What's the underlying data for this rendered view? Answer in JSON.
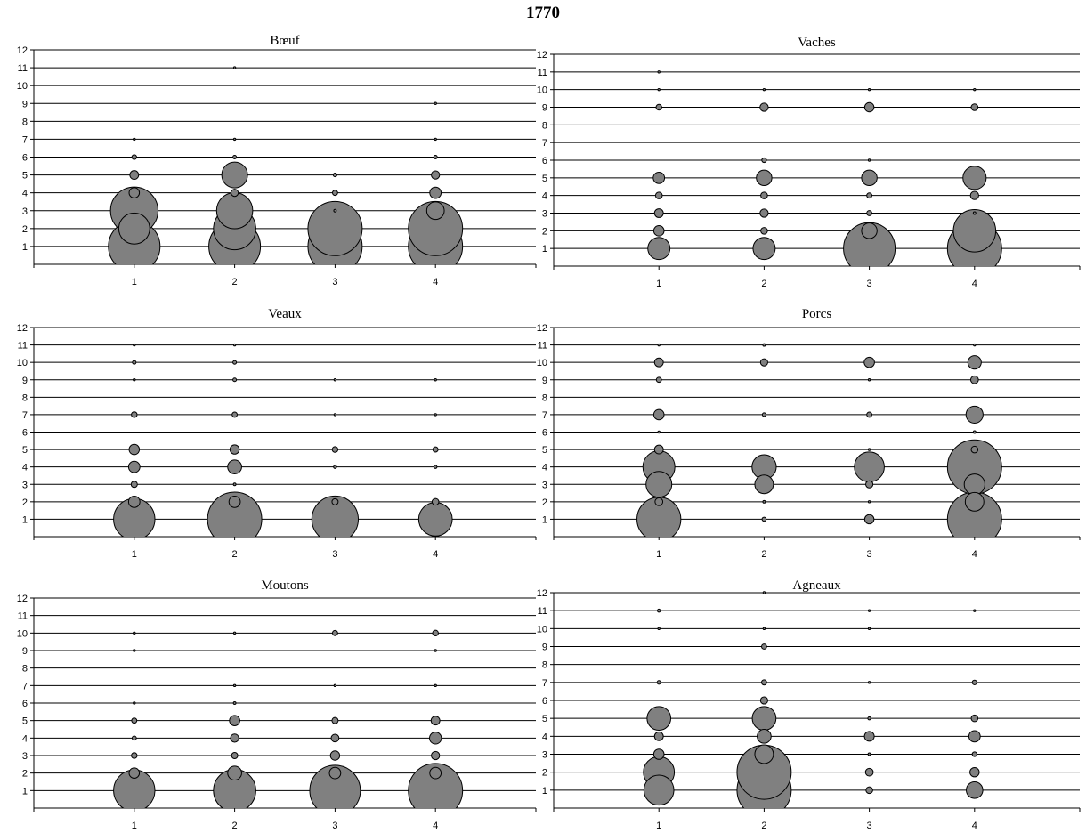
{
  "title": "1770",
  "colors": {
    "bubble_fill": "#808080",
    "bubble_stroke": "#000000",
    "grid": "#000000"
  },
  "chart_data": [
    {
      "type": "scatter",
      "title": "Bœuf",
      "x_ticks": [
        1,
        2,
        3,
        4
      ],
      "y_ticks": [
        1,
        2,
        3,
        4,
        5,
        6,
        7,
        8,
        9,
        10,
        11,
        12
      ],
      "xlim": [
        0,
        5
      ],
      "ylim": [
        0,
        12
      ],
      "grid": "horizontal",
      "points": [
        {
          "x": 1,
          "y": 1,
          "size": 1.0
        },
        {
          "x": 1,
          "y": 3,
          "size": 0.92
        },
        {
          "x": 1,
          "y": 2,
          "size": 0.6
        },
        {
          "x": 1,
          "y": 4,
          "size": 0.2
        },
        {
          "x": 1,
          "y": 5,
          "size": 0.17
        },
        {
          "x": 1,
          "y": 6,
          "size": 0.09
        },
        {
          "x": 1,
          "y": 7,
          "size": 0.04
        },
        {
          "x": 2,
          "y": 1,
          "size": 1.0
        },
        {
          "x": 2,
          "y": 2,
          "size": 0.82
        },
        {
          "x": 2,
          "y": 3,
          "size": 0.7
        },
        {
          "x": 2,
          "y": 5,
          "size": 0.5
        },
        {
          "x": 2,
          "y": 4,
          "size": 0.14
        },
        {
          "x": 2,
          "y": 6,
          "size": 0.07
        },
        {
          "x": 2,
          "y": 7,
          "size": 0.04
        },
        {
          "x": 2,
          "y": 11,
          "size": 0.04
        },
        {
          "x": 3,
          "y": 1,
          "size": 1.05
        },
        {
          "x": 3,
          "y": 2,
          "size": 1.05
        },
        {
          "x": 3,
          "y": 4,
          "size": 0.1
        },
        {
          "x": 3,
          "y": 5,
          "size": 0.07
        },
        {
          "x": 3,
          "y": 3,
          "size": 0.05
        },
        {
          "x": 4,
          "y": 1,
          "size": 1.05
        },
        {
          "x": 4,
          "y": 2,
          "size": 1.05
        },
        {
          "x": 4,
          "y": 3,
          "size": 0.34
        },
        {
          "x": 4,
          "y": 4,
          "size": 0.22
        },
        {
          "x": 4,
          "y": 5,
          "size": 0.16
        },
        {
          "x": 4,
          "y": 6,
          "size": 0.07
        },
        {
          "x": 4,
          "y": 7,
          "size": 0.04
        },
        {
          "x": 4,
          "y": 9,
          "size": 0.04
        }
      ]
    },
    {
      "type": "scatter",
      "title": "Vaches",
      "x_ticks": [
        1,
        2,
        3,
        4
      ],
      "y_ticks": [
        1,
        2,
        3,
        4,
        5,
        6,
        7,
        8,
        9,
        10,
        11,
        12
      ],
      "xlim": [
        0,
        5
      ],
      "ylim": [
        0,
        12
      ],
      "grid": "horizontal",
      "points": [
        {
          "x": 1,
          "y": 1,
          "size": 0.43
        },
        {
          "x": 1,
          "y": 2,
          "size": 0.2
        },
        {
          "x": 1,
          "y": 3,
          "size": 0.17
        },
        {
          "x": 1,
          "y": 4,
          "size": 0.13
        },
        {
          "x": 1,
          "y": 5,
          "size": 0.22
        },
        {
          "x": 1,
          "y": 9,
          "size": 0.11
        },
        {
          "x": 1,
          "y": 10,
          "size": 0.04
        },
        {
          "x": 1,
          "y": 11,
          "size": 0.04
        },
        {
          "x": 2,
          "y": 1,
          "size": 0.43
        },
        {
          "x": 2,
          "y": 2,
          "size": 0.13
        },
        {
          "x": 2,
          "y": 3,
          "size": 0.16
        },
        {
          "x": 2,
          "y": 4,
          "size": 0.13
        },
        {
          "x": 2,
          "y": 5,
          "size": 0.3
        },
        {
          "x": 2,
          "y": 6,
          "size": 0.09
        },
        {
          "x": 2,
          "y": 9,
          "size": 0.16
        },
        {
          "x": 2,
          "y": 10,
          "size": 0.04
        },
        {
          "x": 3,
          "y": 1,
          "size": 1.0
        },
        {
          "x": 3,
          "y": 2,
          "size": 0.3
        },
        {
          "x": 3,
          "y": 3,
          "size": 0.1
        },
        {
          "x": 3,
          "y": 4,
          "size": 0.1
        },
        {
          "x": 3,
          "y": 5,
          "size": 0.3
        },
        {
          "x": 3,
          "y": 6,
          "size": 0.04
        },
        {
          "x": 3,
          "y": 9,
          "size": 0.18
        },
        {
          "x": 3,
          "y": 10,
          "size": 0.04
        },
        {
          "x": 4,
          "y": 1,
          "size": 1.05
        },
        {
          "x": 4,
          "y": 2,
          "size": 0.82
        },
        {
          "x": 4,
          "y": 3,
          "size": 0.05
        },
        {
          "x": 4,
          "y": 4,
          "size": 0.16
        },
        {
          "x": 4,
          "y": 5,
          "size": 0.45
        },
        {
          "x": 4,
          "y": 9,
          "size": 0.13
        },
        {
          "x": 4,
          "y": 10,
          "size": 0.04
        }
      ]
    },
    {
      "type": "scatter",
      "title": "Veaux",
      "x_ticks": [
        1,
        2,
        3,
        4
      ],
      "y_ticks": [
        1,
        2,
        3,
        4,
        5,
        6,
        7,
        8,
        9,
        10,
        11,
        12
      ],
      "xlim": [
        0,
        5
      ],
      "ylim": [
        0,
        12
      ],
      "grid": "horizontal",
      "points": [
        {
          "x": 1,
          "y": 1,
          "size": 0.8
        },
        {
          "x": 1,
          "y": 2,
          "size": 0.22
        },
        {
          "x": 1,
          "y": 3,
          "size": 0.12
        },
        {
          "x": 1,
          "y": 4,
          "size": 0.22
        },
        {
          "x": 1,
          "y": 5,
          "size": 0.2
        },
        {
          "x": 1,
          "y": 7,
          "size": 0.11
        },
        {
          "x": 1,
          "y": 9,
          "size": 0.04
        },
        {
          "x": 1,
          "y": 10,
          "size": 0.07
        },
        {
          "x": 1,
          "y": 11,
          "size": 0.04
        },
        {
          "x": 2,
          "y": 1,
          "size": 1.05
        },
        {
          "x": 2,
          "y": 2,
          "size": 0.22
        },
        {
          "x": 2,
          "y": 3,
          "size": 0.05
        },
        {
          "x": 2,
          "y": 4,
          "size": 0.27
        },
        {
          "x": 2,
          "y": 5,
          "size": 0.18
        },
        {
          "x": 2,
          "y": 7,
          "size": 0.1
        },
        {
          "x": 2,
          "y": 9,
          "size": 0.07
        },
        {
          "x": 2,
          "y": 10,
          "size": 0.07
        },
        {
          "x": 2,
          "y": 11,
          "size": 0.03
        },
        {
          "x": 3,
          "y": 1,
          "size": 0.9
        },
        {
          "x": 3,
          "y": 2,
          "size": 0.12
        },
        {
          "x": 3,
          "y": 4,
          "size": 0.06
        },
        {
          "x": 3,
          "y": 5,
          "size": 0.11
        },
        {
          "x": 3,
          "y": 7,
          "size": 0.03
        },
        {
          "x": 3,
          "y": 9,
          "size": 0.04
        },
        {
          "x": 4,
          "y": 1,
          "size": 0.65
        },
        {
          "x": 4,
          "y": 2,
          "size": 0.13
        },
        {
          "x": 4,
          "y": 4,
          "size": 0.06
        },
        {
          "x": 4,
          "y": 5,
          "size": 0.1
        },
        {
          "x": 4,
          "y": 7,
          "size": 0.03
        },
        {
          "x": 4,
          "y": 9,
          "size": 0.03
        }
      ]
    },
    {
      "type": "scatter",
      "title": "Porcs",
      "x_ticks": [
        1,
        2,
        3,
        4
      ],
      "y_ticks": [
        1,
        2,
        3,
        4,
        5,
        6,
        7,
        8,
        9,
        10,
        11,
        12
      ],
      "xlim": [
        0,
        5
      ],
      "ylim": [
        0,
        12
      ],
      "grid": "horizontal",
      "points": [
        {
          "x": 1,
          "y": 1,
          "size": 0.85
        },
        {
          "x": 1,
          "y": 2,
          "size": 0.15
        },
        {
          "x": 1,
          "y": 3,
          "size": 0.5
        },
        {
          "x": 1,
          "y": 4,
          "size": 0.62
        },
        {
          "x": 1,
          "y": 5,
          "size": 0.17
        },
        {
          "x": 1,
          "y": 6,
          "size": 0.04
        },
        {
          "x": 1,
          "y": 7,
          "size": 0.2
        },
        {
          "x": 1,
          "y": 9,
          "size": 0.1
        },
        {
          "x": 1,
          "y": 10,
          "size": 0.17
        },
        {
          "x": 1,
          "y": 11,
          "size": 0.03
        },
        {
          "x": 2,
          "y": 1,
          "size": 0.08
        },
        {
          "x": 2,
          "y": 2,
          "size": 0.05
        },
        {
          "x": 2,
          "y": 3,
          "size": 0.36
        },
        {
          "x": 2,
          "y": 4,
          "size": 0.47
        },
        {
          "x": 2,
          "y": 7,
          "size": 0.07
        },
        {
          "x": 2,
          "y": 10,
          "size": 0.14
        },
        {
          "x": 2,
          "y": 11,
          "size": 0.05
        },
        {
          "x": 3,
          "y": 1,
          "size": 0.18
        },
        {
          "x": 3,
          "y": 2,
          "size": 0.04
        },
        {
          "x": 3,
          "y": 3,
          "size": 0.14
        },
        {
          "x": 3,
          "y": 4,
          "size": 0.58
        },
        {
          "x": 3,
          "y": 5,
          "size": 0.04
        },
        {
          "x": 3,
          "y": 7,
          "size": 0.1
        },
        {
          "x": 3,
          "y": 9,
          "size": 0.04
        },
        {
          "x": 3,
          "y": 10,
          "size": 0.2
        },
        {
          "x": 4,
          "y": 1,
          "size": 1.05
        },
        {
          "x": 4,
          "y": 2,
          "size": 0.36
        },
        {
          "x": 4,
          "y": 3,
          "size": 0.4
        },
        {
          "x": 4,
          "y": 4,
          "size": 1.05
        },
        {
          "x": 4,
          "y": 5,
          "size": 0.13
        },
        {
          "x": 4,
          "y": 6,
          "size": 0.05
        },
        {
          "x": 4,
          "y": 7,
          "size": 0.33
        },
        {
          "x": 4,
          "y": 9,
          "size": 0.15
        },
        {
          "x": 4,
          "y": 10,
          "size": 0.26
        },
        {
          "x": 4,
          "y": 11,
          "size": 0.04
        }
      ]
    },
    {
      "type": "scatter",
      "title": "Moutons",
      "x_ticks": [
        1,
        2,
        3,
        4
      ],
      "y_ticks": [
        1,
        2,
        3,
        4,
        5,
        6,
        7,
        8,
        9,
        10,
        11,
        12
      ],
      "xlim": [
        0,
        5
      ],
      "ylim": [
        0,
        12
      ],
      "grid": "horizontal",
      "points": [
        {
          "x": 1,
          "y": 1,
          "size": 0.8
        },
        {
          "x": 1,
          "y": 2,
          "size": 0.2
        },
        {
          "x": 1,
          "y": 3,
          "size": 0.11
        },
        {
          "x": 1,
          "y": 4,
          "size": 0.08
        },
        {
          "x": 1,
          "y": 5,
          "size": 0.1
        },
        {
          "x": 1,
          "y": 6,
          "size": 0.03
        },
        {
          "x": 1,
          "y": 9,
          "size": 0.03
        },
        {
          "x": 1,
          "y": 10,
          "size": 0.04
        },
        {
          "x": 2,
          "y": 1,
          "size": 0.82
        },
        {
          "x": 2,
          "y": 2,
          "size": 0.27
        },
        {
          "x": 2,
          "y": 3,
          "size": 0.12
        },
        {
          "x": 2,
          "y": 4,
          "size": 0.16
        },
        {
          "x": 2,
          "y": 5,
          "size": 0.2
        },
        {
          "x": 2,
          "y": 6,
          "size": 0.05
        },
        {
          "x": 2,
          "y": 7,
          "size": 0.03
        },
        {
          "x": 2,
          "y": 10,
          "size": 0.03
        },
        {
          "x": 3,
          "y": 1,
          "size": 0.98
        },
        {
          "x": 3,
          "y": 2,
          "size": 0.22
        },
        {
          "x": 3,
          "y": 3,
          "size": 0.18
        },
        {
          "x": 3,
          "y": 4,
          "size": 0.15
        },
        {
          "x": 3,
          "y": 5,
          "size": 0.12
        },
        {
          "x": 3,
          "y": 7,
          "size": 0.04
        },
        {
          "x": 3,
          "y": 10,
          "size": 0.1
        },
        {
          "x": 4,
          "y": 1,
          "size": 1.05
        },
        {
          "x": 4,
          "y": 2,
          "size": 0.22
        },
        {
          "x": 4,
          "y": 3,
          "size": 0.16
        },
        {
          "x": 4,
          "y": 4,
          "size": 0.23
        },
        {
          "x": 4,
          "y": 5,
          "size": 0.17
        },
        {
          "x": 4,
          "y": 7,
          "size": 0.04
        },
        {
          "x": 4,
          "y": 9,
          "size": 0.03
        },
        {
          "x": 4,
          "y": 10,
          "size": 0.11
        }
      ]
    },
    {
      "type": "scatter",
      "title": "Agneaux",
      "x_ticks": [
        1,
        2,
        3,
        4
      ],
      "y_ticks": [
        1,
        2,
        3,
        4,
        5,
        6,
        7,
        8,
        9,
        10,
        11,
        12
      ],
      "xlim": [
        0,
        5
      ],
      "ylim": [
        0,
        12
      ],
      "grid": "horizontal",
      "points": [
        {
          "x": 1,
          "y": 1,
          "size": 0.58
        },
        {
          "x": 1,
          "y": 2,
          "size": 0.6
        },
        {
          "x": 1,
          "y": 3,
          "size": 0.2
        },
        {
          "x": 1,
          "y": 4,
          "size": 0.17
        },
        {
          "x": 1,
          "y": 5,
          "size": 0.46
        },
        {
          "x": 1,
          "y": 7,
          "size": 0.07
        },
        {
          "x": 1,
          "y": 10,
          "size": 0.04
        },
        {
          "x": 1,
          "y": 11,
          "size": 0.06
        },
        {
          "x": 2,
          "y": 1,
          "size": 1.05
        },
        {
          "x": 2,
          "y": 2,
          "size": 1.05
        },
        {
          "x": 2,
          "y": 3,
          "size": 0.36
        },
        {
          "x": 2,
          "y": 4,
          "size": 0.27
        },
        {
          "x": 2,
          "y": 5,
          "size": 0.46
        },
        {
          "x": 2,
          "y": 6,
          "size": 0.14
        },
        {
          "x": 2,
          "y": 7,
          "size": 0.1
        },
        {
          "x": 2,
          "y": 9,
          "size": 0.1
        },
        {
          "x": 2,
          "y": 10,
          "size": 0.04
        },
        {
          "x": 2,
          "y": 12,
          "size": 0.04
        },
        {
          "x": 3,
          "y": 1,
          "size": 0.13
        },
        {
          "x": 3,
          "y": 2,
          "size": 0.15
        },
        {
          "x": 3,
          "y": 3,
          "size": 0.05
        },
        {
          "x": 3,
          "y": 4,
          "size": 0.19
        },
        {
          "x": 3,
          "y": 5,
          "size": 0.06
        },
        {
          "x": 3,
          "y": 7,
          "size": 0.04
        },
        {
          "x": 3,
          "y": 10,
          "size": 0.03
        },
        {
          "x": 3,
          "y": 11,
          "size": 0.03
        },
        {
          "x": 4,
          "y": 1,
          "size": 0.32
        },
        {
          "x": 4,
          "y": 2,
          "size": 0.18
        },
        {
          "x": 4,
          "y": 3,
          "size": 0.09
        },
        {
          "x": 4,
          "y": 4,
          "size": 0.22
        },
        {
          "x": 4,
          "y": 5,
          "size": 0.13
        },
        {
          "x": 4,
          "y": 7,
          "size": 0.09
        },
        {
          "x": 4,
          "y": 11,
          "size": 0.03
        }
      ]
    }
  ]
}
